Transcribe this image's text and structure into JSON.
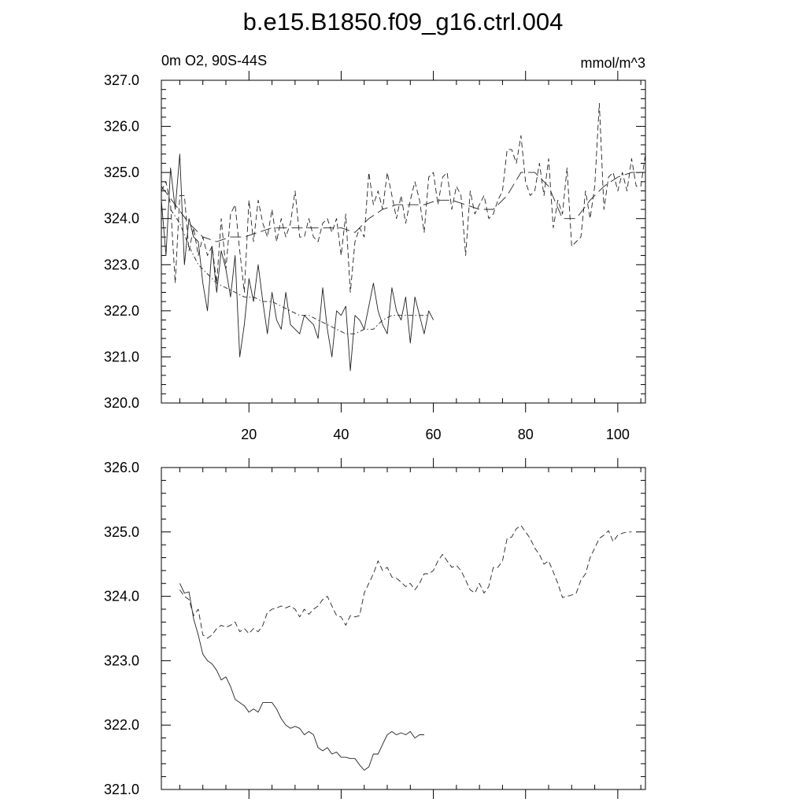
{
  "title": "b.e15.B1850.f09_g16.ctrl.004",
  "chart_data": [
    {
      "type": "line",
      "subtitle_left": "0m O2, 90S-44S",
      "subtitle_right": "mmol/m^3",
      "xlim": [
        1,
        106
      ],
      "ylim": [
        320,
        327
      ],
      "xticks": [
        20,
        40,
        60,
        80,
        100
      ],
      "xtick_labels": [
        "20",
        "40",
        "60",
        "80",
        "100"
      ],
      "yticks": [
        320,
        321,
        322,
        323,
        324,
        325,
        326,
        327
      ],
      "ytick_labels": [
        "320.0",
        "321.0",
        "322.0",
        "323.0",
        "324.0",
        "325.0",
        "326.0",
        "327.0"
      ],
      "series": [
        {
          "style": "solid",
          "x": [
            1,
            2,
            3,
            4,
            5,
            6,
            7,
            8,
            9,
            10,
            11,
            12,
            13,
            14,
            15,
            16,
            17,
            18,
            19,
            20,
            21,
            22,
            23,
            24,
            25,
            26,
            27,
            28,
            29,
            30,
            31,
            32,
            33,
            34,
            35,
            36,
            37,
            38,
            39,
            40,
            41,
            42,
            43,
            44,
            45,
            46,
            47,
            48,
            49,
            50,
            51,
            52,
            53,
            54,
            55,
            56,
            57,
            58,
            59,
            60
          ],
          "y": [
            324.4,
            323.2,
            325.1,
            324.2,
            325.4,
            323.0,
            324.0,
            323.6,
            323.5,
            322.6,
            322.0,
            323.4,
            322.4,
            323.3,
            322.9,
            322.3,
            323.2,
            321.0,
            321.7,
            322.7,
            322.2,
            323.0,
            322.2,
            321.5,
            322.4,
            321.8,
            321.6,
            322.4,
            321.7,
            321.6,
            321.5,
            321.9,
            321.8,
            321.7,
            321.4,
            322.5,
            321.6,
            321.0,
            322.0,
            321.9,
            322.1,
            320.7,
            321.9,
            321.8,
            321.6,
            322.1,
            322.6,
            322.0,
            321.7,
            321.5,
            322.5,
            322.0,
            321.8,
            322.3,
            321.3,
            322.3,
            321.9,
            321.5,
            322.0,
            321.8
          ]
        },
        {
          "style": "dashed",
          "x": [
            1,
            2,
            3,
            4,
            5,
            6,
            7,
            8,
            9,
            10,
            11,
            12,
            13,
            14,
            15,
            16,
            17,
            18,
            19,
            20,
            21,
            22,
            23,
            24,
            25,
            26,
            27,
            28,
            29,
            30,
            31,
            32,
            33,
            34,
            35,
            36,
            37,
            38,
            39,
            40,
            41,
            42,
            43,
            44,
            45,
            46,
            47,
            48,
            49,
            50,
            51,
            52,
            53,
            54,
            55,
            56,
            57,
            58,
            59,
            60,
            61,
            62,
            63,
            64,
            65,
            66,
            67,
            68,
            69,
            70,
            71,
            72,
            73,
            74,
            75,
            76,
            77,
            78,
            79,
            80,
            81,
            82,
            83,
            84,
            85,
            86,
            87,
            88,
            89,
            90,
            91,
            92,
            93,
            94,
            95,
            96,
            97,
            98,
            99,
            100,
            101,
            102,
            103,
            104,
            105,
            106
          ],
          "y": [
            324.6,
            324.8,
            324.3,
            322.6,
            324.5,
            324.5,
            323.3,
            323.8,
            323.2,
            323.6,
            323.2,
            323.4,
            322.6,
            324.0,
            322.9,
            324.1,
            324.3,
            323.3,
            322.4,
            324.4,
            323.5,
            324.4,
            323.9,
            323.6,
            324.2,
            323.5,
            324.0,
            323.6,
            323.9,
            324.6,
            323.6,
            323.6,
            324.0,
            323.6,
            323.5,
            323.9,
            324.0,
            323.7,
            324.0,
            323.2,
            324.1,
            322.4,
            323.5,
            323.8,
            323.6,
            325.0,
            324.3,
            324.6,
            324.2,
            325.0,
            324.5,
            324.0,
            324.5,
            323.9,
            324.4,
            324.8,
            324.4,
            323.7,
            324.9,
            325.0,
            324.3,
            324.9,
            325.0,
            324.2,
            324.7,
            324.5,
            323.2,
            324.6,
            324.1,
            324.3,
            324.5,
            324.0,
            324.1,
            324.4,
            324.6,
            325.5,
            325.5,
            325.2,
            325.8,
            324.8,
            324.5,
            324.6,
            325.2,
            324.5,
            325.3,
            323.8,
            324.4,
            324.1,
            325.1,
            323.4,
            323.5,
            323.6,
            324.6,
            324.0,
            324.7,
            326.5,
            324.2,
            324.9,
            325.0,
            324.6,
            325.0,
            324.6,
            325.3,
            324.7,
            324.7,
            325.4
          ]
        },
        {
          "style": "dashdot",
          "x": [
            3,
            5,
            7,
            9,
            11,
            13,
            15,
            17,
            19,
            21,
            23,
            25,
            27,
            29,
            31,
            33,
            35,
            37,
            39,
            41,
            43,
            45,
            47,
            49,
            51,
            53,
            55,
            57,
            59
          ],
          "y": [
            324.2,
            323.9,
            323.4,
            323.0,
            322.8,
            322.6,
            322.5,
            322.4,
            322.3,
            322.3,
            322.2,
            322.2,
            322.1,
            322.0,
            321.9,
            321.9,
            321.8,
            321.7,
            321.6,
            321.5,
            321.5,
            321.6,
            321.6,
            321.8,
            321.9,
            321.9,
            321.9,
            321.9,
            321.9
          ]
        },
        {
          "style": "longdash",
          "x": [
            1,
            4,
            7,
            10,
            13,
            16,
            19,
            22,
            25,
            28,
            31,
            34,
            37,
            40,
            43,
            46,
            49,
            52,
            55,
            58,
            61,
            64,
            67,
            70,
            73,
            76,
            79,
            82,
            85,
            88,
            91,
            94,
            97,
            100,
            103,
            106
          ],
          "y": [
            324.7,
            324.3,
            323.9,
            323.6,
            323.5,
            323.6,
            323.6,
            323.7,
            323.8,
            323.8,
            323.8,
            323.8,
            323.8,
            323.8,
            323.7,
            324.0,
            324.2,
            324.3,
            324.3,
            324.3,
            324.4,
            324.4,
            324.3,
            324.2,
            324.2,
            324.5,
            325.0,
            325.0,
            324.7,
            324.0,
            324.0,
            324.4,
            324.7,
            324.9,
            325.0,
            325.0
          ]
        }
      ]
    },
    {
      "type": "line",
      "xlim": [
        1,
        106
      ],
      "ylim": [
        321,
        326
      ],
      "xticks": [
        20,
        40,
        60,
        80,
        100
      ],
      "yticks": [
        321,
        322,
        323,
        324,
        325,
        326
      ],
      "ytick_labels": [
        "321.0",
        "322.0",
        "323.0",
        "324.0",
        "325.0",
        "326.0"
      ],
      "series": [
        {
          "style": "solid",
          "x": [
            5,
            6,
            7,
            8,
            9,
            10,
            11,
            12,
            13,
            14,
            15,
            16,
            17,
            18,
            19,
            20,
            21,
            22,
            23,
            24,
            25,
            26,
            27,
            28,
            29,
            30,
            31,
            32,
            33,
            34,
            35,
            36,
            37,
            38,
            39,
            40,
            41,
            42,
            43,
            44,
            45,
            46,
            47,
            48,
            49,
            50,
            51,
            52,
            53,
            54,
            55,
            56,
            57,
            58
          ],
          "y": [
            324.2,
            324.05,
            324.07,
            323.65,
            323.4,
            323.1,
            323.0,
            322.95,
            322.85,
            322.7,
            322.75,
            322.6,
            322.4,
            322.35,
            322.3,
            322.2,
            322.25,
            322.2,
            322.35,
            322.35,
            322.35,
            322.25,
            322.1,
            322.0,
            321.95,
            321.98,
            321.95,
            321.85,
            321.9,
            321.85,
            321.65,
            321.6,
            321.65,
            321.55,
            321.58,
            321.5,
            321.5,
            321.48,
            321.48,
            321.38,
            321.3,
            321.35,
            321.55,
            321.55,
            321.7,
            321.85,
            321.9,
            321.85,
            321.88,
            321.85,
            321.9,
            321.8,
            321.85,
            321.85
          ]
        },
        {
          "style": "dashed",
          "x": [
            5,
            6,
            7,
            8,
            9,
            10,
            11,
            12,
            13,
            14,
            15,
            16,
            17,
            18,
            19,
            20,
            21,
            22,
            23,
            24,
            25,
            26,
            27,
            28,
            29,
            30,
            31,
            32,
            33,
            34,
            35,
            36,
            37,
            38,
            39,
            40,
            41,
            42,
            43,
            44,
            45,
            46,
            47,
            48,
            49,
            50,
            51,
            52,
            53,
            54,
            55,
            56,
            57,
            58,
            59,
            60,
            61,
            62,
            63,
            64,
            65,
            66,
            67,
            68,
            69,
            70,
            71,
            72,
            73,
            74,
            75,
            76,
            77,
            78,
            79,
            80,
            81,
            82,
            83,
            84,
            85,
            86,
            87,
            88,
            89,
            90,
            91,
            92,
            93,
            94,
            95,
            96,
            97,
            98,
            99,
            100,
            101,
            102,
            103
          ],
          "y": [
            324.1,
            324.0,
            323.95,
            323.7,
            323.8,
            323.4,
            323.35,
            323.4,
            323.5,
            323.55,
            323.52,
            323.55,
            323.6,
            323.45,
            323.5,
            323.42,
            323.5,
            323.45,
            323.55,
            323.75,
            323.8,
            323.82,
            323.85,
            323.82,
            323.85,
            323.8,
            323.68,
            323.8,
            323.72,
            323.8,
            323.85,
            323.95,
            324.0,
            323.85,
            323.7,
            323.68,
            323.55,
            323.7,
            323.68,
            323.7,
            324.05,
            324.2,
            324.35,
            324.55,
            324.4,
            324.45,
            324.3,
            324.28,
            324.22,
            324.15,
            324.2,
            324.1,
            324.2,
            324.35,
            324.35,
            324.4,
            324.55,
            324.65,
            324.55,
            324.45,
            324.48,
            324.4,
            324.25,
            324.1,
            324.05,
            324.2,
            324.05,
            324.15,
            324.45,
            324.45,
            324.55,
            324.9,
            324.92,
            325.05,
            325.1,
            325.0,
            324.9,
            324.75,
            324.65,
            324.5,
            324.55,
            324.38,
            324.2,
            323.98,
            324.0,
            324.02,
            324.05,
            324.25,
            324.35,
            324.6,
            324.75,
            324.9,
            324.95,
            325.02,
            324.85,
            324.95,
            324.98,
            325.0,
            325.0
          ]
        }
      ]
    }
  ]
}
